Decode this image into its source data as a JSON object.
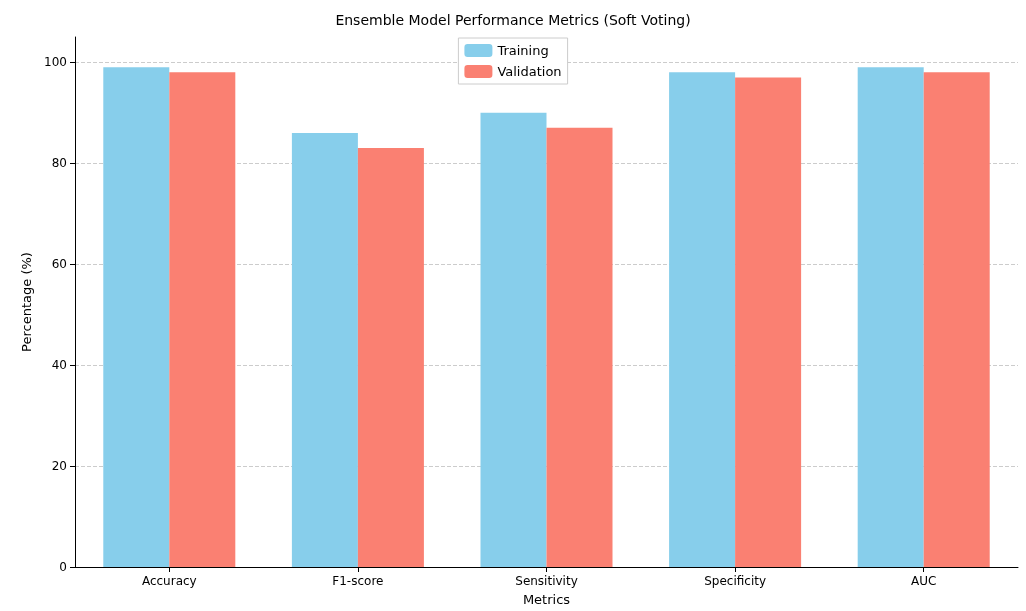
{
  "chart_data": {
    "type": "bar",
    "title": "Ensemble Model Performance Metrics (Soft Voting)",
    "xlabel": "Metrics",
    "ylabel": "Percentage (%)",
    "categories": [
      "Accuracy",
      "F1-score",
      "Sensitivity",
      "Specificity",
      "AUC"
    ],
    "series": [
      {
        "name": "Training",
        "color": "#87ceeb",
        "values": [
          99,
          86,
          90,
          98,
          99
        ]
      },
      {
        "name": "Validation",
        "color": "#fa8072",
        "values": [
          98,
          83,
          87,
          97,
          98
        ]
      }
    ],
    "ylim": [
      0,
      105
    ],
    "yticks": [
      0,
      20,
      40,
      60,
      80,
      100
    ],
    "grid": "y",
    "legend": "top"
  }
}
